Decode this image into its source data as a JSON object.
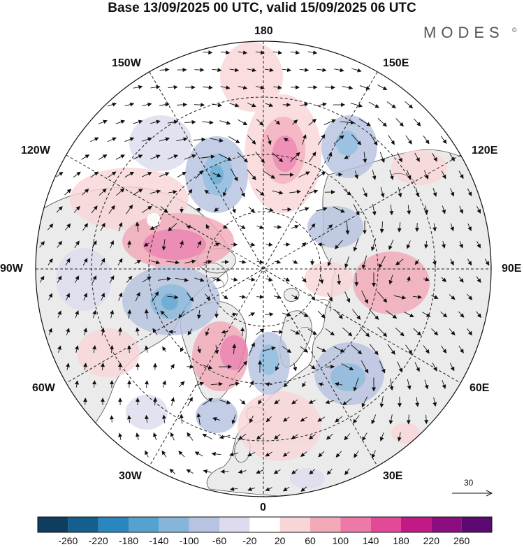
{
  "title": "Base 13/09/2025 00 UTC, valid 15/09/2025 06 UTC",
  "logo": {
    "text": "MODES",
    "mark": "©"
  },
  "longitude_labels": {
    "lon_180": "180",
    "lon_150e": "150E",
    "lon_120e": "120E",
    "lon_90e": "90E",
    "lon_60e": "60E",
    "lon_30e": "30E",
    "lon_0": "0",
    "lon_30w": "30W",
    "lon_60w": "60W",
    "lon_90w": "90W",
    "lon_120w": "120W",
    "lon_150w": "150W"
  },
  "vector_reference": {
    "label": "30"
  },
  "colorbar": {
    "colors": [
      "#0e3d5e",
      "#155f8f",
      "#2a86bf",
      "#56a2cf",
      "#86b5da",
      "#b7c3e0",
      "#dcdcee",
      "#ffffff",
      "#f8d6d8",
      "#f2aab8",
      "#ec79a8",
      "#e24a98",
      "#c11a86",
      "#8c0e7e",
      "#5a0a70"
    ],
    "ticks": [
      "-260",
      "-220",
      "-180",
      "-140",
      "-100",
      "-60",
      "-20",
      "20",
      "60",
      "100",
      "140",
      "180",
      "220",
      "260"
    ]
  },
  "colors": {
    "land": "#ebebeb",
    "coastline": "#4a4a4a",
    "grid": "#222222",
    "positive": "#f2aab8",
    "negative": "#86b5da"
  }
}
